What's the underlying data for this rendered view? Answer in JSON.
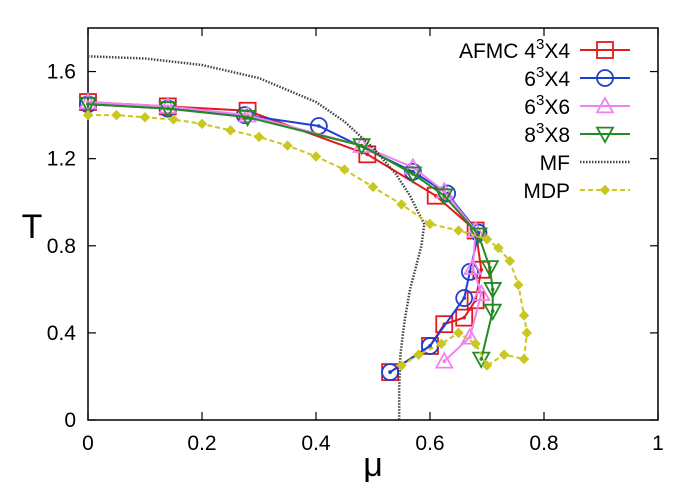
{
  "chart_data": {
    "type": "line",
    "xlabel": "μ",
    "ylabel": "T",
    "xlim": [
      0,
      1
    ],
    "ylim": [
      0,
      1.8
    ],
    "xticks": [
      "0",
      "0.2",
      "0.4",
      "0.6",
      "0.8",
      "1"
    ],
    "yticks": [
      "0",
      "0.4",
      "0.8",
      "1.2",
      "1.6"
    ],
    "legend_position": "top-right",
    "grid": false,
    "series": [
      {
        "name_main": "AFMC 4",
        "name_sup": "3",
        "name_tail": "X4",
        "color": "#e41a1c",
        "marker": "square",
        "x": [
          0.0,
          0.14,
          0.28,
          0.49,
          0.61,
          0.68,
          0.69,
          0.68,
          0.66,
          0.625,
          0.6,
          0.53
        ],
        "y": [
          1.46,
          1.44,
          1.42,
          1.22,
          1.03,
          0.87,
          0.69,
          0.55,
          0.47,
          0.44,
          0.34,
          0.22
        ]
      },
      {
        "name_main": "6",
        "name_sup": "3",
        "name_tail": "X4",
        "color": "#1f3fcf",
        "marker": "circle",
        "x": [
          0.0,
          0.14,
          0.275,
          0.405,
          0.57,
          0.63,
          0.685,
          0.67,
          0.66,
          0.6,
          0.53
        ],
        "y": [
          1.45,
          1.43,
          1.4,
          1.35,
          1.14,
          1.04,
          0.86,
          0.68,
          0.56,
          0.34,
          0.22
        ]
      },
      {
        "name_main": "6",
        "name_sup": "3",
        "name_tail": "X6",
        "color": "#ee82ee",
        "marker": "triangle-up",
        "x": [
          0.0,
          0.14,
          0.28,
          0.48,
          0.57,
          0.625,
          0.68,
          0.675,
          0.69,
          0.67,
          0.625
        ],
        "y": [
          1.46,
          1.44,
          1.4,
          1.26,
          1.16,
          1.05,
          0.87,
          0.7,
          0.58,
          0.38,
          0.27
        ]
      },
      {
        "name_main": "8",
        "name_sup": "3",
        "name_tail": "X8",
        "color": "#228b22",
        "marker": "triangle-down",
        "x": [
          0.0,
          0.14,
          0.28,
          0.48,
          0.57,
          0.625,
          0.685,
          0.705,
          0.71,
          0.71,
          0.69
        ],
        "y": [
          1.45,
          1.43,
          1.39,
          1.26,
          1.13,
          1.03,
          0.85,
          0.7,
          0.6,
          0.5,
          0.28
        ]
      },
      {
        "name_main": "MF",
        "name_sup": "",
        "name_tail": "",
        "color": "#444444",
        "marker": "none",
        "dash": "dotted-dense",
        "x": [
          0.0,
          0.1,
          0.2,
          0.3,
          0.4,
          0.45,
          0.5,
          0.54,
          0.565,
          0.58,
          0.59,
          0.585,
          0.575,
          0.565,
          0.555,
          0.548,
          0.546,
          0.546
        ],
        "y": [
          1.67,
          1.66,
          1.63,
          1.57,
          1.46,
          1.37,
          1.25,
          1.13,
          1.03,
          0.95,
          0.9,
          0.8,
          0.7,
          0.6,
          0.45,
          0.3,
          0.15,
          0.0
        ]
      },
      {
        "name_main": "MDP",
        "name_sup": "",
        "name_tail": "",
        "color": "#c8c820",
        "marker": "diamond",
        "dash": "dashed",
        "x": [
          0.0,
          0.05,
          0.1,
          0.15,
          0.2,
          0.25,
          0.3,
          0.35,
          0.4,
          0.45,
          0.5,
          0.55,
          0.6,
          0.65,
          0.7,
          0.72,
          0.74,
          0.755,
          0.765,
          0.77,
          0.765,
          0.73,
          0.7,
          0.68,
          0.65,
          0.62,
          0.58,
          0.55
        ],
        "y": [
          1.4,
          1.4,
          1.39,
          1.38,
          1.36,
          1.33,
          1.3,
          1.26,
          1.21,
          1.15,
          1.07,
          0.99,
          0.9,
          0.87,
          0.83,
          0.79,
          0.73,
          0.62,
          0.48,
          0.4,
          0.28,
          0.3,
          0.25,
          0.35,
          0.4,
          0.35,
          0.3,
          0.25
        ]
      }
    ]
  }
}
